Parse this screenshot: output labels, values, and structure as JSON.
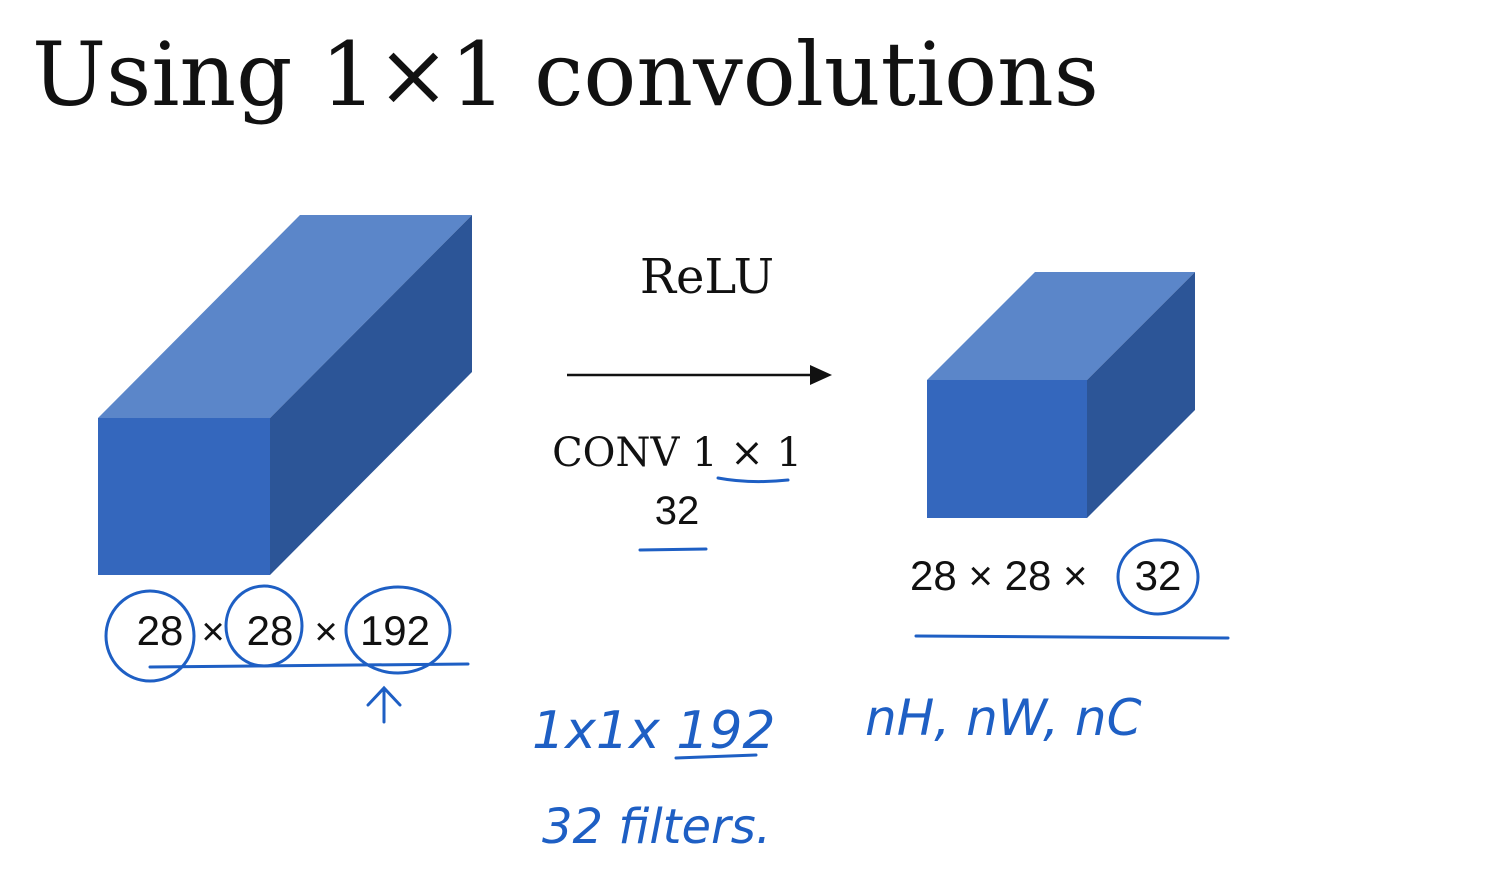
{
  "slide": {
    "title": "Using 1×1 convolutions",
    "colors": {
      "front": "#3467bd",
      "top": "#5b86c9",
      "side": "#2c5597",
      "ink": "#1e5fc4"
    },
    "operation": {
      "activation": "ReLU",
      "conv": "CONV 1 × 1",
      "filters": "32"
    },
    "input": {
      "h": "28",
      "w": "28",
      "c": "192",
      "sep": "×"
    },
    "output": {
      "label": "28 × 28 × 32",
      "h_w": "28 × 28 ×",
      "c": "32"
    },
    "annotations": {
      "filter_shape": "1x1x 192",
      "filter_count": "32  filters.",
      "dims": "nH, nW,  nC"
    }
  }
}
